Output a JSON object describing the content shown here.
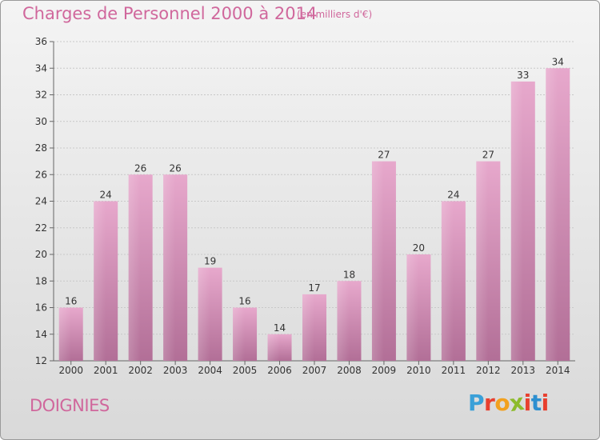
{
  "header": {
    "title": "Charges de Personnel 2000 à 2014",
    "subtitle": "(en milliers d'€)"
  },
  "footer": {
    "commune": "DOIGNIES",
    "logo_text": "Proxiti",
    "logo_colors": [
      "#3aa0d8",
      "#e8402f",
      "#f2a11f",
      "#8dbb2c",
      "#e8402f",
      "#2c8fd0",
      "#e8402f"
    ]
  },
  "chart_data": {
    "type": "bar",
    "categories": [
      "2000",
      "2001",
      "2002",
      "2003",
      "2004",
      "2005",
      "2006",
      "2007",
      "2008",
      "2009",
      "2010",
      "2011",
      "2012",
      "2013",
      "2014"
    ],
    "values": [
      16,
      24,
      26,
      26,
      19,
      16,
      14,
      17,
      18,
      27,
      20,
      24,
      27,
      33,
      34
    ],
    "ylim": [
      12,
      36
    ],
    "yticks": [
      12,
      14,
      16,
      18,
      20,
      22,
      24,
      26,
      28,
      30,
      32,
      34,
      36
    ],
    "grid": true,
    "legend": "none",
    "bar_color_top": "#e7a8cc",
    "bar_color_bottom": "#b26f97"
  }
}
